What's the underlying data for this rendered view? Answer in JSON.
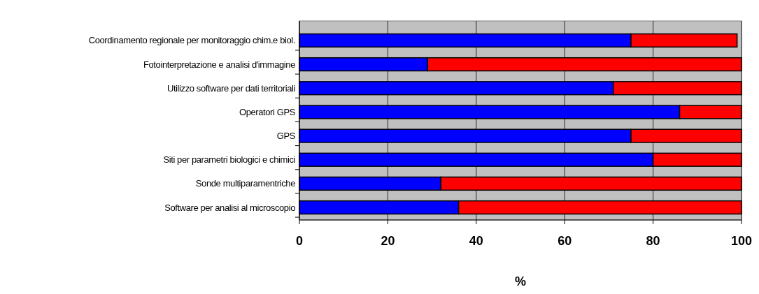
{
  "chart_data": {
    "type": "bar",
    "orientation": "horizontal",
    "stacked": true,
    "xlabel": "%",
    "categories": [
      "Coordinamento regionale per monitoraggio chim.e biol.",
      "Fotointerpretazione e analisi d'immagine",
      "Utilizzo software per dati territoriali",
      "Operatori GPS",
      "GPS",
      "Siti per parametri biologici e chimici",
      "Sonde multiparamentriche",
      "Software per analisi al microscopio"
    ],
    "series": [
      {
        "color": "#0000ff",
        "values": [
          75,
          29,
          71,
          86,
          75,
          80,
          32,
          36
        ]
      },
      {
        "color": "#ff0000",
        "values": [
          24,
          71,
          29,
          14,
          25,
          20,
          68,
          64
        ]
      }
    ],
    "xlim": [
      0,
      100
    ],
    "xticks": [
      0,
      20,
      40,
      60,
      80,
      100
    ],
    "grid": "x"
  }
}
